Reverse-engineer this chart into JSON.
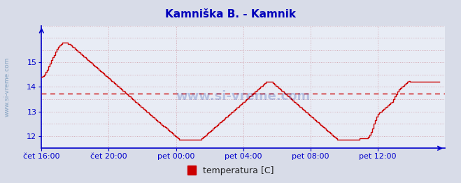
{
  "title": "Kamniška B. - Kamnik",
  "ylabel_text": "www.si-vreme.com",
  "legend_label": "temperatura [C]",
  "avg_line": 13.72,
  "ylim": [
    11.5,
    16.5
  ],
  "yticks": [
    12,
    13,
    14,
    15
  ],
  "xtick_labels": [
    "čet 16:00",
    "čet 20:00",
    "pet 00:00",
    "pet 04:00",
    "pet 08:00",
    "pet 12:00"
  ],
  "xtick_positions": [
    0,
    48,
    96,
    144,
    192,
    240
  ],
  "total_points": 289,
  "bg_color": "#d8dce8",
  "plot_bg_color": "#e8ecf5",
  "line_color": "#cc0000",
  "axis_color": "#0000cc",
  "title_color": "#0000bb",
  "avg_color": "#cc0000",
  "legend_color": "#cc0000",
  "grid_color": "#d4aab4",
  "temperature_data": [
    14.4,
    14.45,
    14.5,
    14.6,
    14.7,
    14.85,
    14.95,
    15.1,
    15.2,
    15.3,
    15.45,
    15.55,
    15.65,
    15.7,
    15.75,
    15.8,
    15.8,
    15.8,
    15.8,
    15.75,
    15.75,
    15.7,
    15.65,
    15.6,
    15.55,
    15.5,
    15.45,
    15.4,
    15.35,
    15.3,
    15.25,
    15.2,
    15.15,
    15.1,
    15.05,
    15.0,
    14.95,
    14.9,
    14.85,
    14.8,
    14.75,
    14.7,
    14.65,
    14.6,
    14.55,
    14.5,
    14.45,
    14.4,
    14.35,
    14.3,
    14.25,
    14.2,
    14.15,
    14.1,
    14.05,
    14.0,
    13.95,
    13.9,
    13.85,
    13.8,
    13.75,
    13.7,
    13.65,
    13.6,
    13.55,
    13.5,
    13.45,
    13.4,
    13.35,
    13.3,
    13.25,
    13.2,
    13.15,
    13.1,
    13.05,
    13.0,
    12.95,
    12.9,
    12.85,
    12.8,
    12.75,
    12.7,
    12.65,
    12.6,
    12.55,
    12.5,
    12.45,
    12.4,
    12.35,
    12.3,
    12.25,
    12.2,
    12.15,
    12.1,
    12.05,
    12.0,
    11.95,
    11.9,
    11.85,
    11.85,
    11.85,
    11.85,
    11.85,
    11.85,
    11.85,
    11.85,
    11.85,
    11.85,
    11.85,
    11.85,
    11.85,
    11.85,
    11.85,
    11.85,
    11.9,
    11.95,
    12.0,
    12.05,
    12.1,
    12.15,
    12.2,
    12.25,
    12.3,
    12.35,
    12.4,
    12.45,
    12.5,
    12.55,
    12.6,
    12.65,
    12.7,
    12.75,
    12.8,
    12.85,
    12.9,
    12.95,
    13.0,
    13.05,
    13.1,
    13.15,
    13.2,
    13.25,
    13.3,
    13.35,
    13.4,
    13.45,
    13.5,
    13.55,
    13.6,
    13.65,
    13.7,
    13.75,
    13.8,
    13.85,
    13.9,
    13.95,
    14.0,
    14.05,
    14.1,
    14.15,
    14.2,
    14.2,
    14.2,
    14.2,
    14.2,
    14.15,
    14.1,
    14.05,
    14.0,
    13.95,
    13.9,
    13.85,
    13.8,
    13.75,
    13.7,
    13.65,
    13.6,
    13.55,
    13.5,
    13.45,
    13.4,
    13.35,
    13.3,
    13.25,
    13.2,
    13.15,
    13.1,
    13.05,
    13.0,
    12.95,
    12.9,
    12.85,
    12.8,
    12.75,
    12.7,
    12.65,
    12.6,
    12.55,
    12.5,
    12.45,
    12.4,
    12.35,
    12.3,
    12.25,
    12.2,
    12.15,
    12.1,
    12.05,
    12.0,
    11.95,
    11.9,
    11.85,
    11.85,
    11.85,
    11.85,
    11.85,
    11.85,
    11.85,
    11.85,
    11.85,
    11.85,
    11.85,
    11.85,
    11.85,
    11.85,
    11.85,
    11.85,
    11.9,
    11.9,
    11.9,
    11.9,
    11.9,
    11.9,
    11.95,
    12.05,
    12.15,
    12.3,
    12.5,
    12.65,
    12.8,
    12.9,
    12.95,
    13.0,
    13.05,
    13.1,
    13.15,
    13.2,
    13.25,
    13.3,
    13.35,
    13.4,
    13.5,
    13.6,
    13.7,
    13.8,
    13.9,
    13.95,
    14.0,
    14.05,
    14.1,
    14.15,
    14.2,
    14.25,
    14.2,
    14.2,
    14.2,
    14.2,
    14.2,
    14.2,
    14.2,
    14.2,
    14.2,
    14.2,
    14.2,
    14.2,
    14.2,
    14.2,
    14.2,
    14.2,
    14.2,
    14.2,
    14.2,
    14.2,
    14.2,
    14.2
  ]
}
